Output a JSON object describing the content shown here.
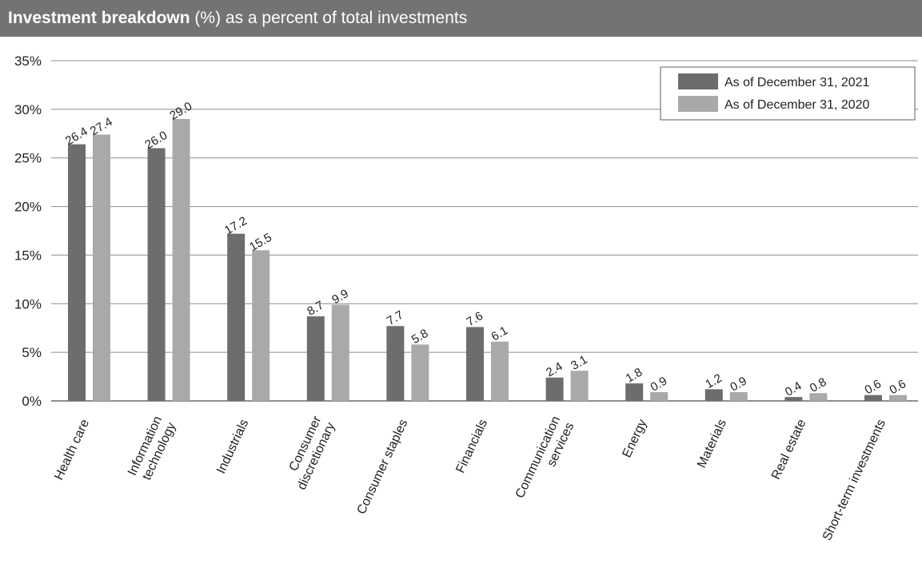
{
  "header": {
    "title_bold": "Investment breakdown",
    "title_rest": " (%) as a percent of total investments"
  },
  "colors": {
    "header_bg": "#737373",
    "series_2021": "#6d6d6d",
    "series_2020": "#a9a9a9",
    "gridline": "#8c8c8c"
  },
  "chart_data": {
    "type": "bar",
    "title": "Investment breakdown (%) as a percent of total investments",
    "categories": [
      [
        "Health care"
      ],
      [
        "Information",
        "technology"
      ],
      [
        "Industrials"
      ],
      [
        "Consumer",
        "discretionary"
      ],
      [
        "Consumer staples"
      ],
      [
        "Financials"
      ],
      [
        "Communication",
        "services"
      ],
      [
        "Energy"
      ],
      [
        "Materials"
      ],
      [
        "Real estate"
      ],
      [
        "Short-term investments"
      ]
    ],
    "series": [
      {
        "name": "As of December 31, 2021",
        "values": [
          26.4,
          26.0,
          17.2,
          8.7,
          7.7,
          7.6,
          2.4,
          1.8,
          1.2,
          0.4,
          0.6
        ]
      },
      {
        "name": "As of December 31, 2020",
        "values": [
          27.4,
          29.0,
          15.5,
          9.9,
          5.8,
          6.1,
          3.1,
          0.9,
          0.9,
          0.8,
          0.6
        ]
      }
    ],
    "ylim": [
      0,
      35
    ],
    "yticks": [
      0,
      5,
      10,
      15,
      20,
      25,
      30,
      35
    ],
    "ytick_suffix": "%",
    "grid": true,
    "legend_position": "top-right",
    "xlabel": "",
    "ylabel": ""
  }
}
